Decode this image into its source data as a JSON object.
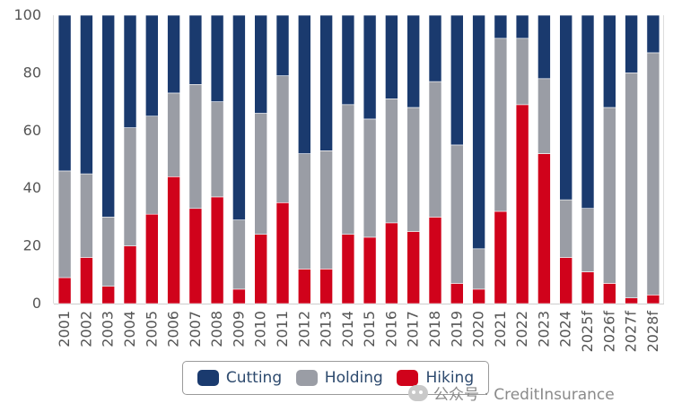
{
  "chart_data": {
    "type": "bar",
    "stacked": true,
    "categories": [
      "2001",
      "2002",
      "2003",
      "2004",
      "2005",
      "2006",
      "2007",
      "2008",
      "2009",
      "2010",
      "2011",
      "2012",
      "2013",
      "2014",
      "2015",
      "2016",
      "2017",
      "2018",
      "2019",
      "2020",
      "2021",
      "2022",
      "2023",
      "2024",
      "2025f",
      "2026f",
      "2027f",
      "2028f"
    ],
    "series": [
      {
        "name": "Hiking",
        "color": "#d0021b",
        "values": [
          9,
          16,
          6,
          20,
          31,
          44,
          33,
          37,
          5,
          24,
          35,
          12,
          12,
          24,
          23,
          28,
          25,
          30,
          7,
          5,
          32,
          69,
          52,
          16,
          11,
          7,
          2,
          3
        ]
      },
      {
        "name": "Holding",
        "color": "#9a9da5",
        "values": [
          37,
          29,
          24,
          41,
          34,
          29,
          43,
          33,
          24,
          42,
          44,
          40,
          41,
          45,
          41,
          43,
          43,
          47,
          48,
          14,
          60,
          23,
          26,
          20,
          22,
          61,
          78,
          84
        ]
      },
      {
        "name": "Cutting",
        "color": "#1a3a6e",
        "values": [
          54,
          55,
          70,
          39,
          35,
          27,
          24,
          30,
          71,
          34,
          21,
          48,
          47,
          31,
          36,
          29,
          32,
          23,
          45,
          81,
          8,
          8,
          22,
          64,
          67,
          32,
          20,
          13
        ]
      }
    ],
    "ylim": [
      0,
      100
    ],
    "yticks": [
      0,
      20,
      40,
      60,
      80,
      100
    ],
    "legend": [
      "Cutting",
      "Holding",
      "Hiking"
    ],
    "legend_position": "bottom",
    "grid": false
  },
  "watermark": {
    "text": "公众号 · CreditInsurance"
  }
}
